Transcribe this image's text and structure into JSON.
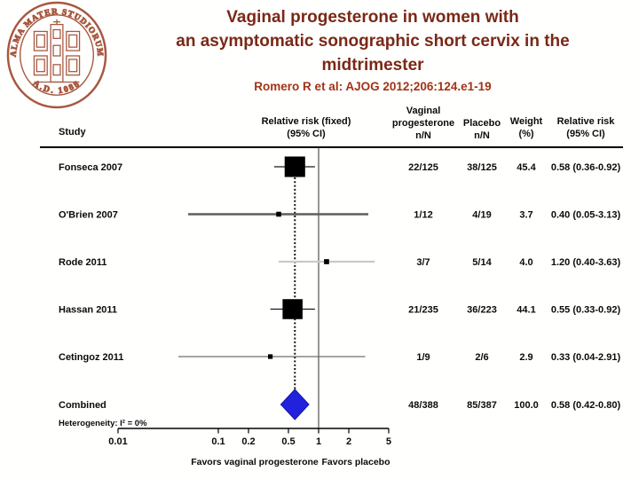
{
  "slide": {
    "title_lines": [
      "Vaginal progesterone in women with",
      "an asymptomatic sonographic short cervix in the",
      "midtrimester"
    ],
    "subtitle": "Romero R et al: AJOG 2012;206:124.e1-19"
  },
  "logo": {
    "ring_text_top": "ALMA MATER STUDIORUM",
    "ring_text_bottom": "A.D. 1088",
    "color": "#a8573f"
  },
  "colors": {
    "title": "#7a2817",
    "subtitle": "#a23315",
    "diamond": "#2222dd",
    "plot_text": "#0b0b0b"
  },
  "chart_data": {
    "type": "forest",
    "x_scale": "log",
    "x_ticks": [
      0.01,
      0.1,
      0.2,
      0.5,
      1,
      2,
      5
    ],
    "x_tick_labels": [
      "0.01",
      "0.1",
      "0.2",
      "0.5",
      "1",
      "2",
      "5"
    ],
    "null_line": 1,
    "columns": {
      "study": "Study",
      "rr_plot": [
        "Relative risk (fixed)",
        "(95% CI)"
      ],
      "treatment": [
        "Vaginal",
        "progesterone",
        "n/N"
      ],
      "placebo": [
        "Placebo",
        "n/N"
      ],
      "weight": [
        "Weight",
        "(%)"
      ],
      "rr_text": [
        "Relative risk",
        "(95% CI)"
      ]
    },
    "studies": [
      {
        "study": "Fonseca 2007",
        "rr": 0.58,
        "ci": [
          0.36,
          0.92
        ],
        "treatment": "22/125",
        "placebo": "38/125",
        "weight": "45.4",
        "weight_pct": 45.4,
        "rr_text": "0.58 (0.36-0.92)",
        "ci_color": "#1a1a1a",
        "ci_width": 1.3
      },
      {
        "study": "O'Brien 2007",
        "rr": 0.4,
        "ci": [
          0.05,
          3.13
        ],
        "treatment": "1/12",
        "placebo": "4/19",
        "weight": "3.7",
        "weight_pct": 3.7,
        "rr_text": "0.40 (0.05-3.13)",
        "ci_color": "#5e5e5e",
        "ci_width": 2.6
      },
      {
        "study": "Rode 2011",
        "rr": 1.2,
        "ci": [
          0.4,
          3.63
        ],
        "treatment": "3/7",
        "placebo": "5/14",
        "weight": "4.0",
        "weight_pct": 4.0,
        "rr_text": "1.20 (0.40-3.63)",
        "ci_color": "#c9c9c9",
        "ci_width": 2.2
      },
      {
        "study": "Hassan 2011",
        "rr": 0.55,
        "ci": [
          0.33,
          0.92
        ],
        "treatment": "21/235",
        "placebo": "36/223",
        "weight": "44.1",
        "weight_pct": 44.1,
        "rr_text": "0.55 (0.33-0.92)",
        "ci_color": "#1a1a1a",
        "ci_width": 1.3
      },
      {
        "study": "Cetingoz 2011",
        "rr": 0.33,
        "ci": [
          0.04,
          2.91
        ],
        "treatment": "1/9",
        "placebo": "2/6",
        "weight": "2.9",
        "weight_pct": 2.9,
        "rr_text": "0.33 (0.04-2.91)",
        "ci_color": "#6e6e6e",
        "ci_width": 1.3
      }
    ],
    "combined": {
      "label": "Combined",
      "rr": 0.58,
      "ci": [
        0.42,
        0.8
      ],
      "treatment": "48/388",
      "placebo": "85/387",
      "weight": "100.0",
      "rr_text": "0.58 (0.42-0.80)"
    },
    "heterogeneity": "Heterogeneity: I² = 0%",
    "favors_left": "Favors vaginal progesterone",
    "favors_right": "Favors placebo"
  }
}
